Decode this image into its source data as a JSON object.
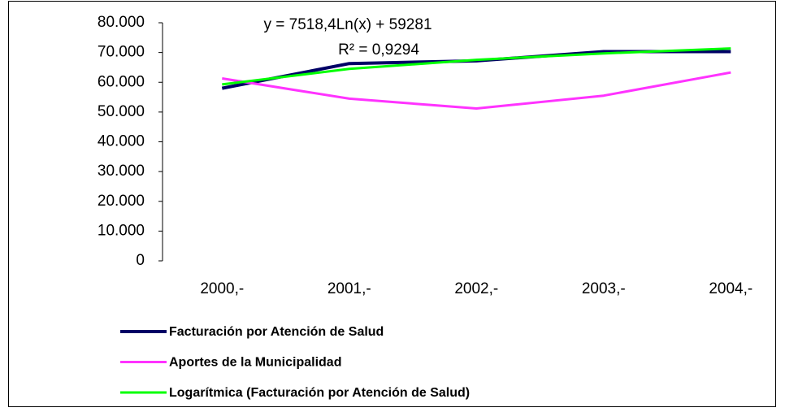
{
  "chart_data": {
    "type": "line",
    "categories": [
      "2000,-",
      "2001,-",
      "2002,-",
      "2003,-",
      "2004,-"
    ],
    "series": [
      {
        "name": "Facturación por Atención de Salud",
        "color": "#000066",
        "values": [
          58000,
          66300,
          67200,
          70300,
          70300
        ]
      },
      {
        "name": "Aportes de la Municipalidad",
        "color": "#ff33ff",
        "values": [
          61300,
          54500,
          51200,
          55500,
          63300
        ]
      },
      {
        "name": "Logarítmica (Facturación por Atención de Salud)",
        "color": "#00ff00",
        "values": [
          59281,
          64492,
          67541,
          69704,
          71381
        ]
      }
    ],
    "annotations": [
      "y = 7518,4Ln(x) + 59281",
      "R² = 0,9294"
    ],
    "ylim": [
      0,
      80000
    ],
    "yticks": [
      {
        "value": 0,
        "label": "0"
      },
      {
        "value": 10000,
        "label": "10.000"
      },
      {
        "value": 20000,
        "label": "20.000"
      },
      {
        "value": 30000,
        "label": "30.000"
      },
      {
        "value": 40000,
        "label": "40.000"
      },
      {
        "value": 50000,
        "label": "50.000"
      },
      {
        "value": 60000,
        "label": "60.000"
      },
      {
        "value": 70000,
        "label": "70.000"
      },
      {
        "value": 80000,
        "label": "80.000"
      }
    ],
    "legend": "bottom"
  }
}
